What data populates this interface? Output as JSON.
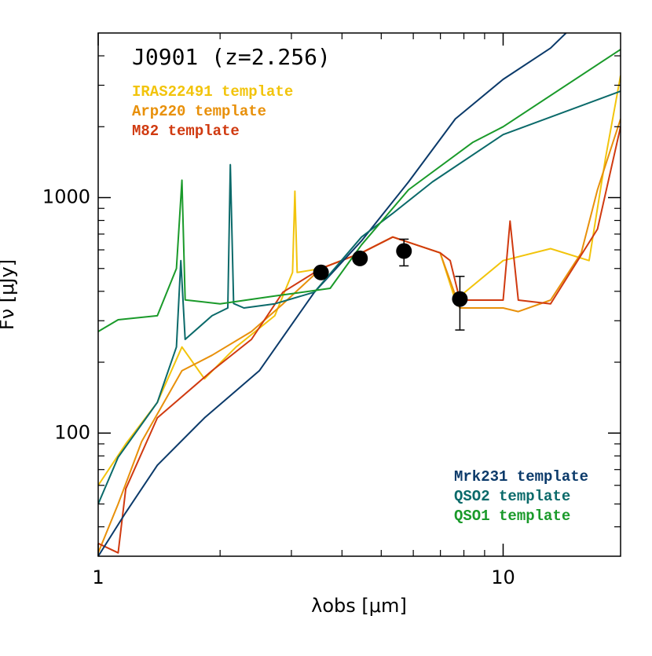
{
  "chart_data": {
    "type": "line",
    "title": "J0901 (z=2.256)",
    "x_label": "λobs [μm]",
    "y_label": "Fν [μJy]",
    "log_x": true,
    "log_y": true,
    "xlim": [
      1,
      19.5
    ],
    "ylim": [
      30,
      5000
    ],
    "xticks": [
      1,
      10
    ],
    "yticks": [
      100,
      1000
    ],
    "xminor": [
      2,
      3,
      4,
      5,
      6,
      7,
      8,
      9
    ],
    "yminor": [
      40,
      50,
      60,
      70,
      80,
      90,
      200,
      300,
      400,
      500,
      600,
      700,
      800,
      900,
      2000,
      3000,
      4000
    ],
    "series": [
      {
        "name": "IRAS22491 template",
        "color": "#f2c40c",
        "legend": "top-left",
        "x": [
          1,
          1.17,
          1.4,
          1.61,
          1.83,
          2.19,
          2.73,
          3.02,
          3.06,
          3.1,
          3.55,
          4.47,
          5.34,
          6.99,
          7.62,
          10,
          13.1,
          16.3,
          17.9,
          19.5
        ],
        "values": [
          60,
          90,
          135,
          232,
          170,
          232,
          315,
          481,
          1064,
          481,
          500,
          583,
          680,
          583,
          367,
          540,
          607,
          540,
          1470,
          3300
        ]
      },
      {
        "name": "Arp220 template",
        "color": "#e8900a",
        "legend": "top-left",
        "x": [
          1,
          1.12,
          1.28,
          1.61,
          1.91,
          2.39,
          2.86,
          3.55,
          4.47,
          5.34,
          6.99,
          7.82,
          10,
          10.9,
          13.1,
          15.6,
          17.1,
          19.5
        ],
        "values": [
          31,
          50,
          92,
          184,
          214,
          270,
          354,
          500,
          583,
          680,
          583,
          340,
          340,
          328,
          367,
          583,
          1080,
          2158
        ]
      },
      {
        "name": "M82 template",
        "color": "#d03a10",
        "legend": "top-left",
        "x": [
          1,
          1.12,
          1.17,
          1.4,
          1.91,
          2.39,
          2.86,
          3.55,
          4.47,
          5.34,
          6.99,
          7.4,
          7.82,
          10,
          10.4,
          10.9,
          13.1,
          17.1,
          19.5
        ],
        "values": [
          34,
          31,
          58,
          116,
          184,
          250,
          397,
          500,
          583,
          680,
          583,
          540,
          367,
          367,
          795,
          367,
          354,
          735,
          2000
        ]
      },
      {
        "name": "Mrk231 template",
        "color": "#0b3a6a",
        "legend": "bottom-right",
        "x": [
          1,
          1.17,
          1.4,
          1.83,
          2.5,
          3.42,
          4.47,
          5.84,
          7.62,
          10,
          13.1,
          14.3
        ],
        "values": [
          30,
          46,
          73,
          116,
          184,
          397,
          655,
          1166,
          2158,
          3177,
          4315,
          5000
        ]
      },
      {
        "name": "QSO2 template",
        "color": "#0b6a6a",
        "legend": "bottom-right",
        "x": [
          1,
          1.12,
          1.4,
          1.56,
          1.6,
          1.64,
          1.91,
          2.09,
          2.12,
          2.16,
          2.29,
          2.73,
          3.42,
          4.47,
          5.34,
          6.69,
          10,
          19.5
        ],
        "values": [
          50,
          79,
          135,
          232,
          540,
          250,
          315,
          340,
          1380,
          355,
          340,
          354,
          397,
          680,
          857,
          1166,
          1852,
          2830
        ]
      },
      {
        "name": "QSO1 template",
        "color": "#1a9a2a",
        "legend": "bottom-right",
        "x": [
          1,
          1.12,
          1.4,
          1.56,
          1.61,
          1.64,
          2,
          2.73,
          3.74,
          4.47,
          5.84,
          8.4,
          10,
          19.5
        ],
        "values": [
          270,
          303,
          315,
          500,
          1185,
          368,
          354,
          382,
          412,
          630,
          1080,
          1714,
          2000,
          4260
        ]
      }
    ],
    "photometry": {
      "color": "#000000",
      "x": [
        3.55,
        4.43,
        5.69,
        7.82
      ],
      "values": [
        481,
        552,
        593,
        371
      ],
      "ylow": [
        null,
        null,
        513,
        274
      ],
      "yhigh": [
        null,
        null,
        666,
        463
      ]
    }
  }
}
